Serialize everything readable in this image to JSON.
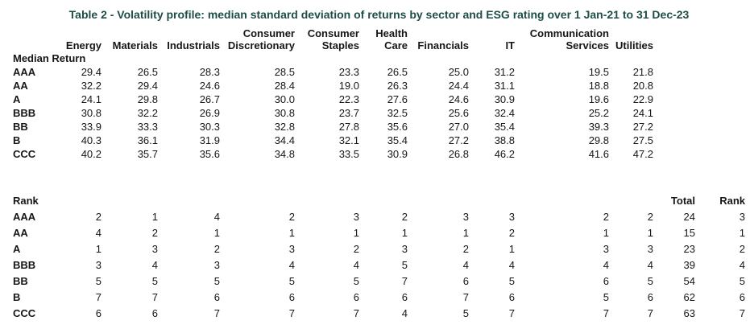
{
  "title": "Table 2 - Volatility profile: median standard deviation of returns by sector and ESG rating over 1 Jan-21 to 31 Dec-23",
  "accent_color": "#1e4d45",
  "section_labels": {
    "median": "Median Return",
    "rank": "Rank"
  },
  "extra_columns": {
    "total": "Total",
    "rank": "Rank"
  },
  "chart_data": {
    "type": "table",
    "title": "Table 2 - Volatility profile: median standard deviation of returns by sector and ESG rating over 1 Jan-21 to 31 Dec-23",
    "columns": [
      "Energy",
      "Materials",
      "Industrials",
      "Consumer Discretionary",
      "Consumer Staples",
      "Health Care",
      "Financials",
      "IT",
      "Communication Services",
      "Utilities"
    ],
    "row_labels": [
      "AAA",
      "AA",
      "A",
      "BBB",
      "BB",
      "B",
      "CCC"
    ],
    "sections": [
      "Median Return",
      "Rank"
    ],
    "rows": [
      {
        "rating": "AAA",
        "median": [
          29.4,
          26.5,
          28.3,
          28.5,
          23.3,
          26.5,
          25.0,
          31.2,
          19.5,
          21.8
        ],
        "rank": [
          2,
          1,
          4,
          2,
          3,
          2,
          3,
          3,
          2,
          2
        ],
        "rank_total": 24,
        "overall_rank": 3
      },
      {
        "rating": "AA",
        "median": [
          32.2,
          29.4,
          24.6,
          28.4,
          19.0,
          26.3,
          24.4,
          31.1,
          18.8,
          20.8
        ],
        "rank": [
          4,
          2,
          1,
          1,
          1,
          1,
          1,
          2,
          1,
          1
        ],
        "rank_total": 15,
        "overall_rank": 1
      },
      {
        "rating": "A",
        "median": [
          24.1,
          29.8,
          26.7,
          30.0,
          22.3,
          27.6,
          24.6,
          30.9,
          19.6,
          22.9
        ],
        "rank": [
          1,
          3,
          2,
          3,
          2,
          3,
          2,
          1,
          3,
          3
        ],
        "rank_total": 23,
        "overall_rank": 2
      },
      {
        "rating": "BBB",
        "median": [
          30.8,
          32.2,
          26.9,
          30.8,
          23.7,
          32.5,
          25.6,
          32.4,
          25.2,
          24.1
        ],
        "rank": [
          3,
          4,
          3,
          4,
          4,
          5,
          4,
          4,
          4,
          4
        ],
        "rank_total": 39,
        "overall_rank": 4
      },
      {
        "rating": "BB",
        "median": [
          33.9,
          33.3,
          30.3,
          32.8,
          27.8,
          35.6,
          27.0,
          35.4,
          39.3,
          27.2
        ],
        "rank": [
          5,
          5,
          5,
          5,
          5,
          7,
          6,
          5,
          6,
          5
        ],
        "rank_total": 54,
        "overall_rank": 5
      },
      {
        "rating": "B",
        "median": [
          40.3,
          36.1,
          31.9,
          34.4,
          32.1,
          35.4,
          27.2,
          38.8,
          29.8,
          27.5
        ],
        "rank": [
          7,
          7,
          6,
          6,
          6,
          6,
          7,
          6,
          5,
          6
        ],
        "rank_total": 62,
        "overall_rank": 6
      },
      {
        "rating": "CCC",
        "median": [
          40.2,
          35.7,
          35.6,
          34.8,
          33.5,
          30.9,
          26.8,
          46.2,
          41.6,
          47.2
        ],
        "rank": [
          6,
          6,
          7,
          7,
          7,
          4,
          5,
          7,
          7,
          7
        ],
        "rank_total": 63,
        "overall_rank": 7
      }
    ]
  }
}
